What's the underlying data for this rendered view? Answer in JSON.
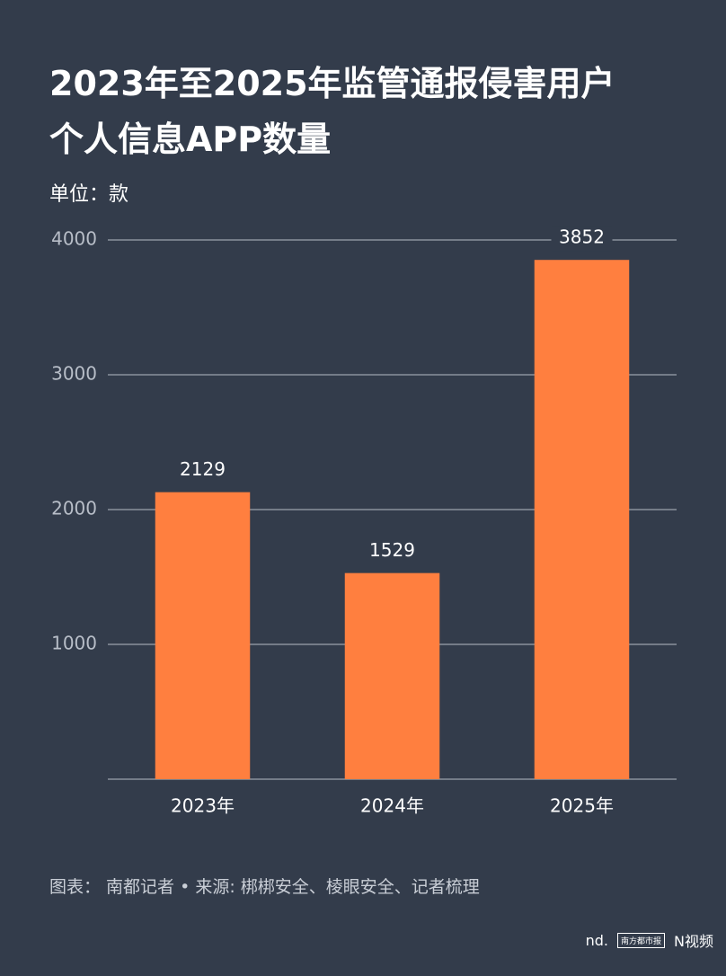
{
  "chart_data": {
    "type": "bar",
    "title": "2023年至2025年监管通报侵害用户个人信息APP数量",
    "subtitle": "单位：款",
    "categories": [
      "2023年",
      "2024年",
      "2025年"
    ],
    "values": [
      2129,
      1529,
      3852
    ],
    "color": "#ff7f3f",
    "ylim": [
      0,
      4000
    ],
    "yticks": [
      1000,
      2000,
      3000,
      4000
    ],
    "grid": true,
    "footer": "图表： 南都记者 • 来源: 梆梆安全、棱眼安全、记者梳理",
    "logos": [
      "nd.",
      "南方都市报",
      "N视频"
    ]
  }
}
